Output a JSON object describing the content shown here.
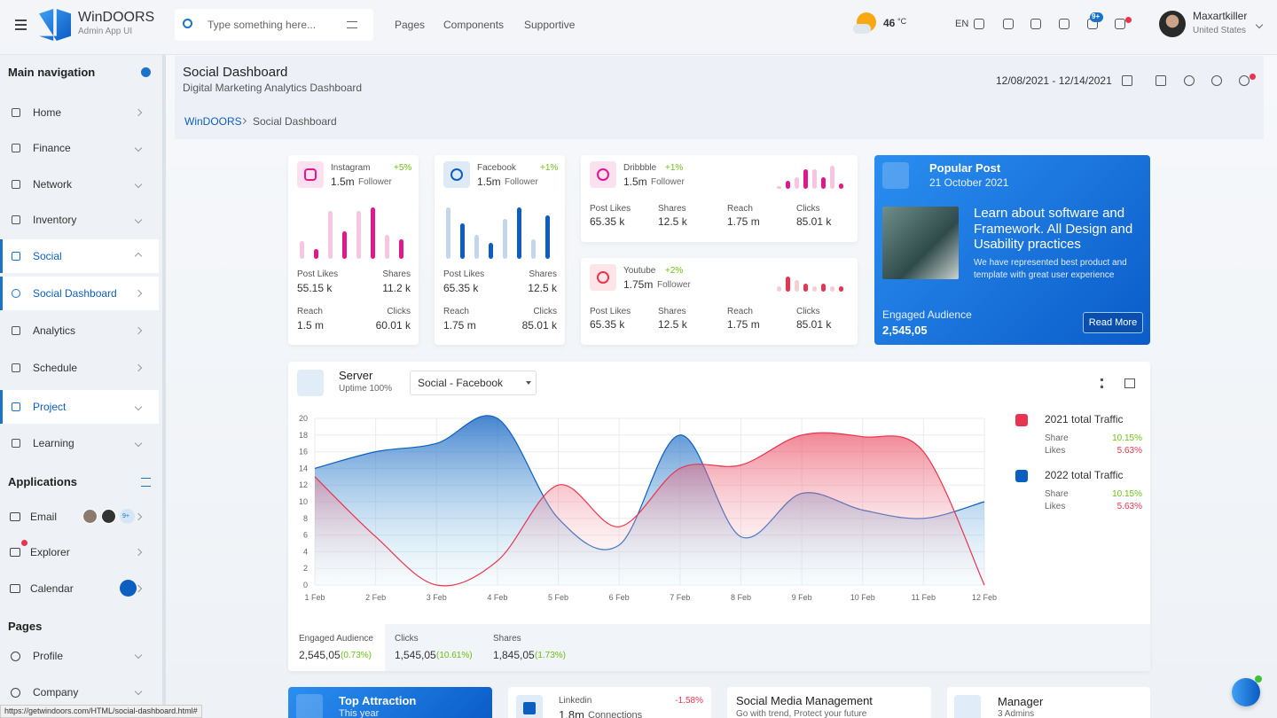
{
  "topbar": {
    "brand": "WinDOORS",
    "brand_sub": "Admin App UI",
    "search_placeholder": "Type something here...",
    "menu": [
      "Pages",
      "Components",
      "Supportive"
    ],
    "temp": "46",
    "temp_unit": "°C",
    "lang": "EN",
    "notif_badge": "9+",
    "user_name": "Maxartkiller",
    "user_location": "United States"
  },
  "sidebar": {
    "main_title": "Main navigation",
    "main_items": [
      "Home",
      "Finance",
      "Network",
      "Inventory",
      "Social",
      "Social Dashboard",
      "Analytics",
      "Schedule",
      "Project",
      "Learning"
    ],
    "apps_title": "Applications",
    "apps_items": [
      "Email",
      "Explorer",
      "Calendar"
    ],
    "email_badge": "9+",
    "pages_title": "Pages",
    "pages_items": [
      "Profile",
      "Company"
    ]
  },
  "page": {
    "title": "Social Dashboard",
    "subtitle": "Digital Marketing Analytics Dashboard",
    "date_range": "12/08/2021 - 12/14/2021",
    "breadcrumb": [
      "WinDOORS",
      "Social Dashboard"
    ]
  },
  "social_cards": [
    {
      "name": "Instagram",
      "change": "+5%",
      "followers": "1.5m",
      "followers_label": "Follower",
      "color": "#e0188c",
      "bars": [
        9,
        5,
        24,
        14,
        24,
        26,
        12,
        10
      ],
      "stats": [
        {
          "label": "Post Likes",
          "value": "55.15 k"
        },
        {
          "label": "Shares",
          "value": "11.2 k"
        },
        {
          "label": "Reach",
          "value": "1.5 m"
        },
        {
          "label": "Clicks",
          "value": "60.01 k"
        }
      ]
    },
    {
      "name": "Facebook",
      "change": "+1%",
      "followers": "1.5m",
      "followers_label": "Follower",
      "color": "#0c5fc0",
      "bars": [
        26,
        18,
        12,
        8,
        20,
        26,
        10,
        22
      ],
      "stats": [
        {
          "label": "Post Likes",
          "value": "65.35 k"
        },
        {
          "label": "Shares",
          "value": "12.5 k"
        },
        {
          "label": "Reach",
          "value": "1.75 m"
        },
        {
          "label": "Clicks",
          "value": "85.01 k"
        }
      ]
    },
    {
      "name": "Dribbble",
      "change": "+1%",
      "followers": "1.5m",
      "followers_label": "Follower",
      "color": "#e0188c",
      "bars": [
        3,
        8,
        12,
        20,
        20,
        12,
        24,
        6
      ],
      "stats": [
        {
          "label": "Post Likes",
          "value": "65.35 k"
        },
        {
          "label": "Shares",
          "value": "12.5 k"
        },
        {
          "label": "Reach",
          "value": "1.75 m"
        },
        {
          "label": "Clicks",
          "value": "85.01 k"
        }
      ]
    },
    {
      "name": "Youtube",
      "change": "+2%",
      "followers": "1.75m",
      "followers_label": "Follower",
      "color": "#e8344e",
      "bars": [
        6,
        16,
        12,
        8,
        6,
        8,
        6,
        6
      ],
      "stats": [
        {
          "label": "Post Likes",
          "value": "65.35 k"
        },
        {
          "label": "Shares",
          "value": "12.5 k"
        },
        {
          "label": "Reach",
          "value": "1.75 m"
        },
        {
          "label": "Clicks",
          "value": "85.01 k"
        }
      ]
    }
  ],
  "popular_post": {
    "title": "Popular Post",
    "date": "21 October 2021",
    "heading": "Learn about software and Framework. All Design and Usability practices",
    "text": "We have represented best product and template with great user experience",
    "audience_label": "Engaged Audience",
    "audience": "2,545,05",
    "button": "Read More"
  },
  "server": {
    "title": "Server",
    "subtitle": "Uptime 100%",
    "select": "Social - Facebook",
    "legend": [
      {
        "share_label": "Share",
        "share": "10.15%",
        "likes_label": "Likes",
        "likes": "5.63%"
      },
      {
        "share_label": "Share",
        "share": "10.15%",
        "likes_label": "Likes",
        "likes": "5.63%"
      }
    ],
    "footer": [
      {
        "label": "Engaged Audience",
        "value": "2,545,05",
        "change": "(0.73%)"
      },
      {
        "label": "Clicks",
        "value": "1,545,05",
        "change": "(10.61%)"
      },
      {
        "label": "Shares",
        "value": "1,845,05",
        "change": "(1.73%)"
      }
    ]
  },
  "chart_data": {
    "type": "area",
    "categories": [
      "1 Feb",
      "2 Feb",
      "3 Feb",
      "4 Feb",
      "5 Feb",
      "6 Feb",
      "7 Feb",
      "8 Feb",
      "9 Feb",
      "10 Feb",
      "11 Feb",
      "12 Feb"
    ],
    "series": [
      {
        "name": "2021 total Traffic",
        "color": "#e8344e",
        "values": [
          13,
          5.8,
          0,
          2.9,
          12,
          7,
          14,
          14.4,
          18,
          17.8,
          16,
          0
        ]
      },
      {
        "name": "2022 total Traffic",
        "color": "#0c5fc0",
        "values": [
          14,
          16,
          17,
          20,
          8,
          4.8,
          18,
          5.8,
          11,
          9,
          8,
          10
        ]
      }
    ],
    "ylim": [
      0,
      20
    ],
    "yticks": [
      0,
      2,
      4,
      6,
      8,
      10,
      12,
      14,
      16,
      18,
      20
    ],
    "grid": true
  },
  "bottom_cards": [
    {
      "title": "Top Attraction",
      "subtitle": "This year"
    },
    {
      "title": "Linkedin",
      "change": "-1.58%",
      "value": "1.8m",
      "subtitle": "Connections"
    },
    {
      "title": "Social Media Management",
      "subtitle": "Go with trend, Protect your future"
    },
    {
      "title": "Manager",
      "subtitle": "3 Admins"
    }
  ],
  "status_url": "https://getwindoors.com/HTML/social-dashboard.html#"
}
